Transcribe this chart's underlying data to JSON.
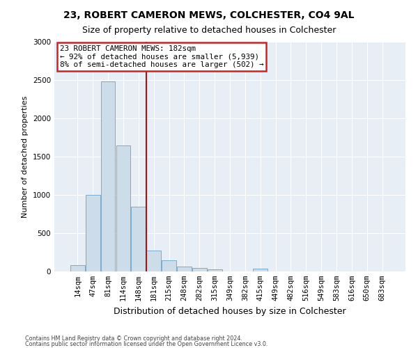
{
  "title1": "23, ROBERT CAMERON MEWS, COLCHESTER, CO4 9AL",
  "title2": "Size of property relative to detached houses in Colchester",
  "xlabel": "Distribution of detached houses by size in Colchester",
  "ylabel": "Number of detached properties",
  "categories": [
    "14sqm",
    "47sqm",
    "81sqm",
    "114sqm",
    "148sqm",
    "181sqm",
    "215sqm",
    "248sqm",
    "282sqm",
    "315sqm",
    "349sqm",
    "382sqm",
    "415sqm",
    "449sqm",
    "482sqm",
    "516sqm",
    "549sqm",
    "583sqm",
    "616sqm",
    "650sqm",
    "683sqm"
  ],
  "values": [
    80,
    1000,
    2480,
    1650,
    850,
    270,
    145,
    60,
    50,
    30,
    0,
    0,
    35,
    0,
    0,
    0,
    0,
    0,
    0,
    0,
    0
  ],
  "bar_color": "#ccdce8",
  "bar_edge_color": "#7aaccf",
  "vline_index": 5,
  "vline_color": "#aa1111",
  "annotation_text": "23 ROBERT CAMERON MEWS: 182sqm\n← 92% of detached houses are smaller (5,939)\n8% of semi-detached houses are larger (502) →",
  "annotation_box_facecolor": "#ffffff",
  "annotation_box_edgecolor": "#cc2222",
  "ylim": [
    0,
    3000
  ],
  "yticks": [
    0,
    500,
    1000,
    1500,
    2000,
    2500,
    3000
  ],
  "title_fontsize": 10,
  "subtitle_fontsize": 9,
  "tick_fontsize": 7.5,
  "ylabel_fontsize": 8,
  "xlabel_fontsize": 9,
  "footer1": "Contains HM Land Registry data © Crown copyright and database right 2024.",
  "footer2": "Contains public sector information licensed under the Open Government Licence v3.0.",
  "fig_facecolor": "#ffffff",
  "axes_facecolor": "#e8eef5"
}
